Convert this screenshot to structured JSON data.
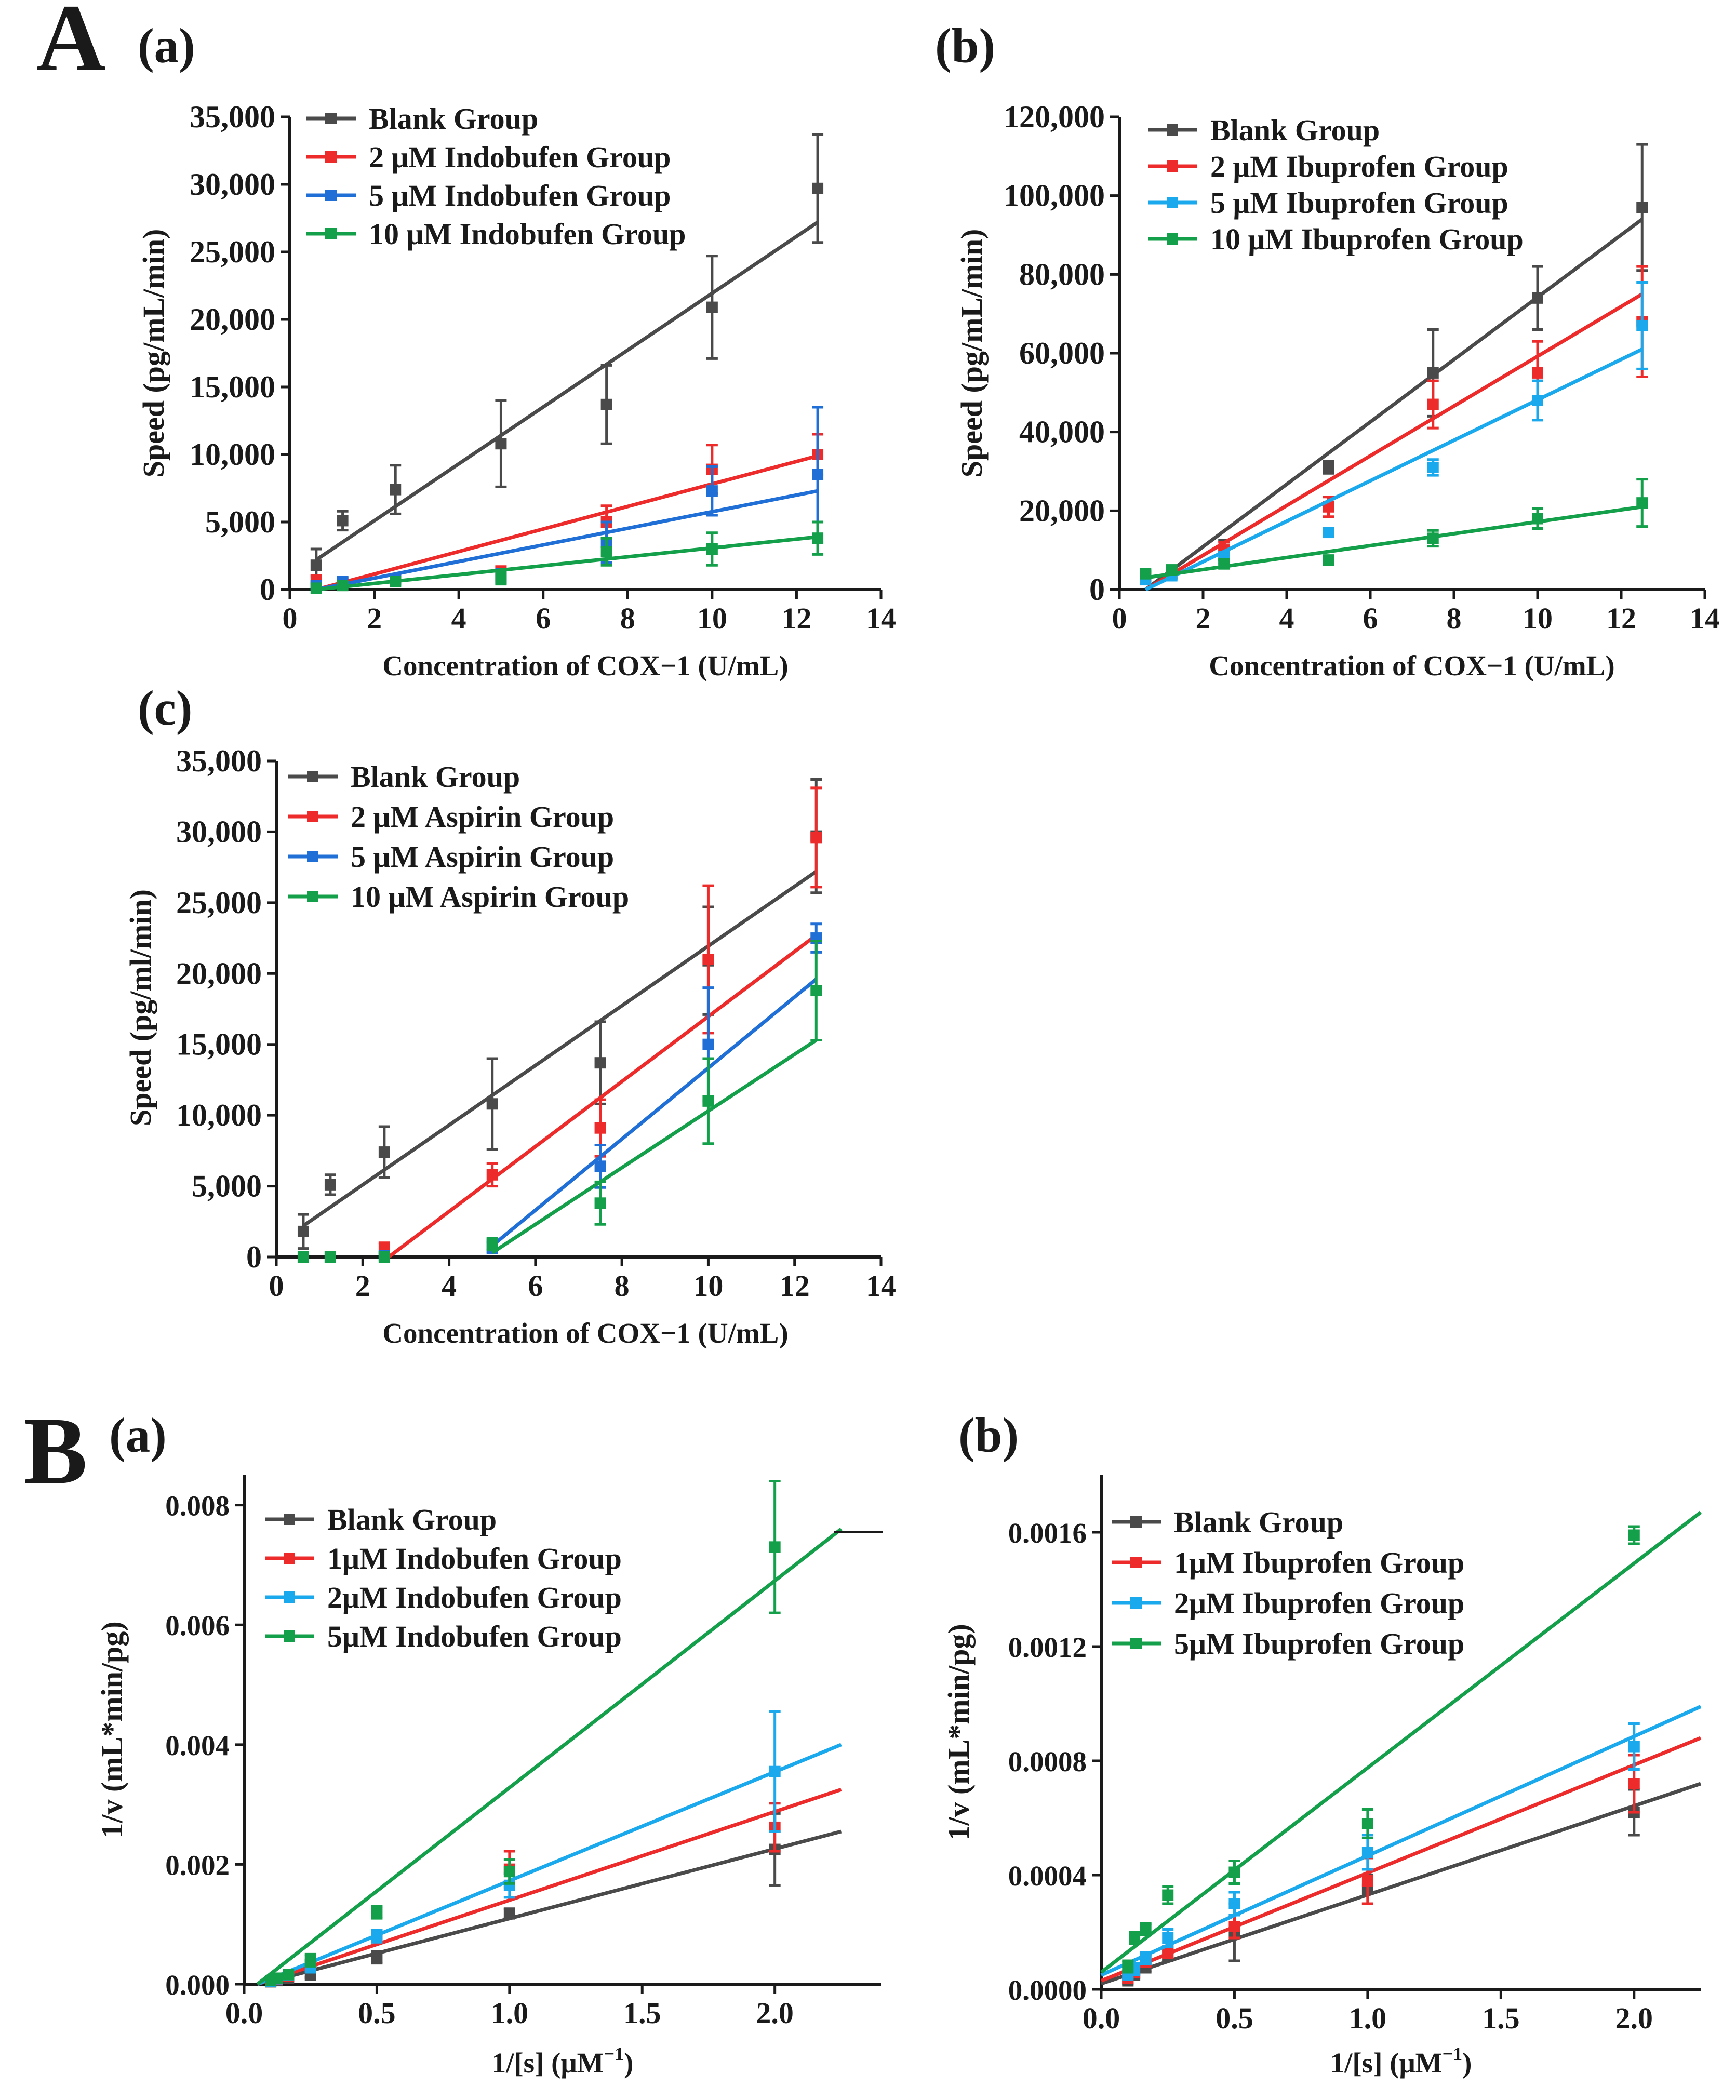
{
  "panel_labels": {
    "A": "A",
    "B": "B"
  },
  "chart_data": [
    {
      "id": "Aa",
      "type": "line",
      "sub_label": "(a)",
      "title": "",
      "xlabel": "Concentration of COX−1 (U/mL)",
      "ylabel": "Speed (pg/mL/min)",
      "xlim": [
        0,
        14
      ],
      "ylim": [
        0,
        35000
      ],
      "xticks": [
        0,
        2,
        4,
        6,
        8,
        10,
        12,
        14
      ],
      "yticks": [
        0,
        5000,
        10000,
        15000,
        20000,
        25000,
        30000,
        35000
      ],
      "xtick_labels": [
        "0",
        "2",
        "4",
        "6",
        "8",
        "10",
        "12",
        "14"
      ],
      "ytick_labels": [
        "0",
        "5,000",
        "10,000",
        "15,000",
        "20,000",
        "25,000",
        "30,000",
        "35,000"
      ],
      "legend_position": "top-left",
      "x": [
        0.625,
        1.25,
        2.5,
        5,
        7.5,
        10,
        12.5
      ],
      "series": [
        {
          "name": "Blank Group",
          "color": "#4a4a4a",
          "values": [
            1800,
            5100,
            7400,
            10800,
            13700,
            20900,
            29700
          ],
          "errors": [
            1200,
            700,
            1800,
            3200,
            2900,
            3800,
            4000
          ],
          "fit": [
            [
              0.625,
              2200
            ],
            [
              12.5,
              27200
            ]
          ]
        },
        {
          "name": "2 μM Indobufen Group",
          "color": "#ee2b2b",
          "values": [
            700,
            500,
            800,
            1200,
            5000,
            8900,
            10000
          ],
          "errors": [
            300,
            300,
            300,
            500,
            1200,
            1800,
            1500
          ],
          "fit": [
            [
              0.625,
              0
            ],
            [
              12.5,
              9900
            ]
          ]
        },
        {
          "name": "5 μM Indobufen Group",
          "color": "#1f6fd6",
          "values": [
            300,
            600,
            700,
            1000,
            3500,
            7300,
            8500
          ],
          "errors": [
            200,
            300,
            300,
            500,
            1500,
            1800,
            5000
          ],
          "fit": [
            [
              0.625,
              0
            ],
            [
              12.5,
              7300
            ]
          ]
        },
        {
          "name": "10 μM Indobufen Group",
          "color": "#14a04a",
          "values": [
            100,
            300,
            600,
            900,
            2800,
            3000,
            3800
          ],
          "errors": [
            100,
            200,
            300,
            500,
            1000,
            1200,
            1200
          ],
          "fit": [
            [
              0.625,
              0
            ],
            [
              12.5,
              3900
            ]
          ]
        }
      ]
    },
    {
      "id": "Ab",
      "type": "line",
      "sub_label": "(b)",
      "title": "",
      "xlabel": "Concentration of COX−1 (U/mL)",
      "ylabel": "Speed (pg/mL/min)",
      "xlim": [
        0,
        14
      ],
      "ylim": [
        0,
        120000
      ],
      "xticks": [
        0,
        2,
        4,
        6,
        8,
        10,
        12,
        14
      ],
      "yticks": [
        0,
        20000,
        40000,
        60000,
        80000,
        100000,
        120000
      ],
      "xtick_labels": [
        "0",
        "2",
        "4",
        "6",
        "8",
        "10",
        "12",
        "14"
      ],
      "ytick_labels": [
        "0",
        "20,000",
        "40,000",
        "60,000",
        "80,000",
        "100,000",
        "120,000"
      ],
      "legend_position": "top-left",
      "x": [
        0.625,
        1.25,
        2.5,
        5,
        7.5,
        10,
        12.5
      ],
      "series": [
        {
          "name": "Blank Group",
          "color": "#4a4a4a",
          "values": [
            3500,
            4200,
            10000,
            31000,
            55000,
            74000,
            97000
          ],
          "errors": [
            1000,
            1500,
            2500,
            1500,
            11000,
            8000,
            16000
          ],
          "fit": [
            [
              0.625,
              0
            ],
            [
              12.5,
              94000
            ]
          ]
        },
        {
          "name": "2 μM Ibuprofen Group",
          "color": "#ee2b2b",
          "values": [
            3000,
            4000,
            10000,
            21000,
            47000,
            55000,
            68000
          ],
          "errors": [
            800,
            1000,
            2000,
            2500,
            6000,
            8000,
            14000
          ],
          "fit": [
            [
              0.625,
              0
            ],
            [
              12.5,
              75000
            ]
          ]
        },
        {
          "name": "5 μM Ibuprofen Group",
          "color": "#1aa9ec",
          "values": [
            2500,
            3500,
            8000,
            14500,
            31000,
            48000,
            67000
          ],
          "errors": [
            800,
            1000,
            1500,
            1000,
            2000,
            5000,
            11000
          ],
          "fit": [
            [
              0.625,
              0
            ],
            [
              12.5,
              61000
            ]
          ]
        },
        {
          "name": "10 μM Ibuprofen Group",
          "color": "#14a04a",
          "values": [
            4000,
            5000,
            6500,
            7500,
            13000,
            18000,
            22000
          ],
          "errors": [
            800,
            800,
            1000,
            1000,
            2000,
            2500,
            6000
          ],
          "fit": [
            [
              0.625,
              3000
            ],
            [
              12.5,
              21000
            ]
          ]
        }
      ]
    },
    {
      "id": "Ac",
      "type": "line",
      "sub_label": "(c)",
      "title": "",
      "xlabel": "Concentration of COX−1 (U/mL)",
      "ylabel": "Speed (pg/ml/min)",
      "xlim": [
        0,
        14
      ],
      "ylim": [
        0,
        35000
      ],
      "xticks": [
        0,
        2,
        4,
        6,
        8,
        10,
        12,
        14
      ],
      "yticks": [
        0,
        5000,
        10000,
        15000,
        20000,
        25000,
        30000,
        35000
      ],
      "xtick_labels": [
        "0",
        "2",
        "4",
        "6",
        "8",
        "10",
        "12",
        "14"
      ],
      "ytick_labels": [
        "0",
        "5,000",
        "10,000",
        "15,000",
        "20,000",
        "25,000",
        "30,000",
        "35,000"
      ],
      "legend_position": "top-left",
      "x": [
        0.625,
        1.25,
        2.5,
        5,
        7.5,
        10,
        12.5
      ],
      "series": [
        {
          "name": "Blank Group",
          "color": "#4a4a4a",
          "values": [
            1800,
            5100,
            7400,
            10800,
            13700,
            20900,
            29700
          ],
          "errors": [
            1200,
            700,
            1800,
            3200,
            2900,
            3800,
            4000
          ],
          "fit": [
            [
              0.625,
              2200
            ],
            [
              12.5,
              27200
            ]
          ]
        },
        {
          "name": "2 μM Aspirin Group",
          "color": "#ee2b2b",
          "values": [
            0,
            0,
            600,
            5800,
            9100,
            21000,
            29600
          ],
          "errors": [
            0,
            0,
            400,
            800,
            2000,
            5200,
            3500
          ],
          "fit": [
            [
              2.6,
              0
            ],
            [
              12.5,
              22700
            ]
          ]
        },
        {
          "name": "5 μM Aspirin Group",
          "color": "#1f6fd6",
          "values": [
            0,
            0,
            100,
            700,
            6400,
            15000,
            22500
          ],
          "errors": [
            0,
            0,
            200,
            400,
            1500,
            4000,
            1000
          ],
          "fit": [
            [
              5,
              800
            ],
            [
              12.5,
              19600
            ]
          ]
        },
        {
          "name": "10 μM Aspirin Group",
          "color": "#14a04a",
          "values": [
            0,
            0,
            0,
            900,
            3800,
            11000,
            18800
          ],
          "errors": [
            0,
            0,
            0,
            400,
            1500,
            3000,
            3500
          ],
          "fit": [
            [
              5,
              300
            ],
            [
              12.5,
              15300
            ]
          ]
        }
      ]
    },
    {
      "id": "Ba",
      "type": "line",
      "sub_label": "(a)",
      "title": "",
      "xlabel": "1/[s] (μM",
      "xlabel_sup": "−1",
      "xlabel_tail": ")",
      "ylabel": "1/v (mL*min/pg)",
      "xlim": [
        0,
        2.4
      ],
      "ylim": [
        0,
        0.0085
      ],
      "xticks": [
        0,
        0.5,
        1,
        1.5,
        2
      ],
      "yticks": [
        0,
        0.002,
        0.004,
        0.006,
        0.008
      ],
      "xtick_labels": [
        "0.0",
        "0.5",
        "1.0",
        "1.5",
        "2.0"
      ],
      "ytick_labels": [
        "0.000",
        "0.002",
        "0.004",
        "0.006",
        "0.008"
      ],
      "legend_position": "top-left",
      "x": [
        0.1,
        0.125,
        0.167,
        0.25,
        0.5,
        1,
        2
      ],
      "series": [
        {
          "name": "Blank Group",
          "color": "#4a4a4a",
          "values": [
            4e-05,
            6e-05,
            0.0001,
            0.00015,
            0.00045,
            0.00118,
            0.00225
          ],
          "errors": [
            2e-05,
            2e-05,
            3e-05,
            4e-05,
            0.0001,
            8e-05,
            0.0006
          ],
          "fit": [
            [
              0.1,
              5e-05
            ],
            [
              2.25,
              0.00255
            ]
          ]
        },
        {
          "name": "1μM Indobufen Group",
          "color": "#ee2b2b",
          "values": [
            5e-05,
            8e-05,
            0.00013,
            0.0003,
            0.0008,
            0.00192,
            0.00262
          ],
          "errors": [
            2e-05,
            2e-05,
            3e-05,
            0.0001,
            0.0001,
            0.0003,
            0.0004
          ],
          "fit": [
            [
              0.05,
              0
            ],
            [
              2.25,
              0.00325
            ]
          ]
        },
        {
          "name": "2μM Indobufen Group",
          "color": "#1aa9ec",
          "values": [
            5e-05,
            9e-05,
            0.00015,
            0.0003,
            0.0008,
            0.00165,
            0.00355
          ],
          "errors": [
            2e-05,
            2e-05,
            3e-05,
            0.0001,
            0.0001,
            0.0002,
            0.001
          ],
          "fit": [
            [
              0.05,
              0
            ],
            [
              2.25,
              0.004
            ]
          ]
        },
        {
          "name": "5μM Indobufen Group",
          "color": "#14a04a",
          "values": [
            6e-05,
            0.0001,
            0.00016,
            0.0004,
            0.0012,
            0.00188,
            0.0073
          ],
          "errors": [
            2e-05,
            2e-05,
            3e-05,
            0.0001,
            0.0001,
            0.0002,
            0.0011
          ],
          "fit": [
            [
              0.05,
              0
            ],
            [
              2.25,
              0.0076
            ]
          ]
        }
      ]
    },
    {
      "id": "Bb",
      "type": "line",
      "sub_label": "(b)",
      "title": "",
      "xlabel": "1/[s] (μM",
      "xlabel_sup": "−1",
      "xlabel_tail": ")",
      "ylabel": "1/v (mL*min/pg)",
      "xlim": [
        0,
        2.25
      ],
      "ylim": [
        0,
        0.0018
      ],
      "xticks": [
        0,
        0.5,
        1,
        1.5,
        2
      ],
      "yticks": [
        0,
        0.0004,
        0.0008,
        0.0012,
        0.0016
      ],
      "xtick_labels": [
        "0.0",
        "0.5",
        "1.0",
        "1.5",
        "2.0"
      ],
      "ytick_labels": [
        "0.0000",
        "0.0004",
        "0.0008",
        "0.0012",
        "0.0016"
      ],
      "legend_position": "top-left",
      "x": [
        0.1,
        0.125,
        0.167,
        0.25,
        0.5,
        1,
        2
      ],
      "series": [
        {
          "name": "Blank Group",
          "color": "#4a4a4a",
          "values": [
            3e-05,
            5e-05,
            8e-05,
            0.00012,
            0.0002,
            0.00035,
            0.00062
          ],
          "errors": [
            1e-05,
            1e-05,
            2e-05,
            2e-05,
            0.0001,
            5e-05,
            8e-05
          ],
          "fit": [
            [
              0,
              2e-05
            ],
            [
              2.25,
              0.00072
            ]
          ]
        },
        {
          "name": "1μM Ibuprofen Group",
          "color": "#ee2b2b",
          "values": [
            4e-05,
            6e-05,
            0.0001,
            0.00013,
            0.00022,
            0.00038,
            0.00072
          ],
          "errors": [
            1e-05,
            1e-05,
            2e-05,
            2e-05,
            4e-05,
            8e-05,
            0.0001
          ],
          "fit": [
            [
              0,
              3e-05
            ],
            [
              2.25,
              0.00088
            ]
          ]
        },
        {
          "name": "2μM Ibuprofen Group",
          "color": "#1aa9ec",
          "values": [
            5e-05,
            7e-05,
            0.00011,
            0.00018,
            0.0003,
            0.00048,
            0.00085
          ],
          "errors": [
            1e-05,
            2e-05,
            2e-05,
            3e-05,
            4e-05,
            6e-05,
            8e-05
          ],
          "fit": [
            [
              0,
              5e-05
            ],
            [
              2.25,
              0.00099
            ]
          ]
        },
        {
          "name": "5μM Ibuprofen Group",
          "color": "#14a04a",
          "values": [
            8e-05,
            0.00018,
            0.00021,
            0.00033,
            0.00041,
            0.00058,
            0.00159
          ],
          "errors": [
            2e-05,
            2e-05,
            2e-05,
            3e-05,
            4e-05,
            5e-05,
            3e-05
          ],
          "fit": [
            [
              0,
              6e-05
            ],
            [
              2.25,
              0.00167
            ]
          ]
        }
      ]
    }
  ]
}
